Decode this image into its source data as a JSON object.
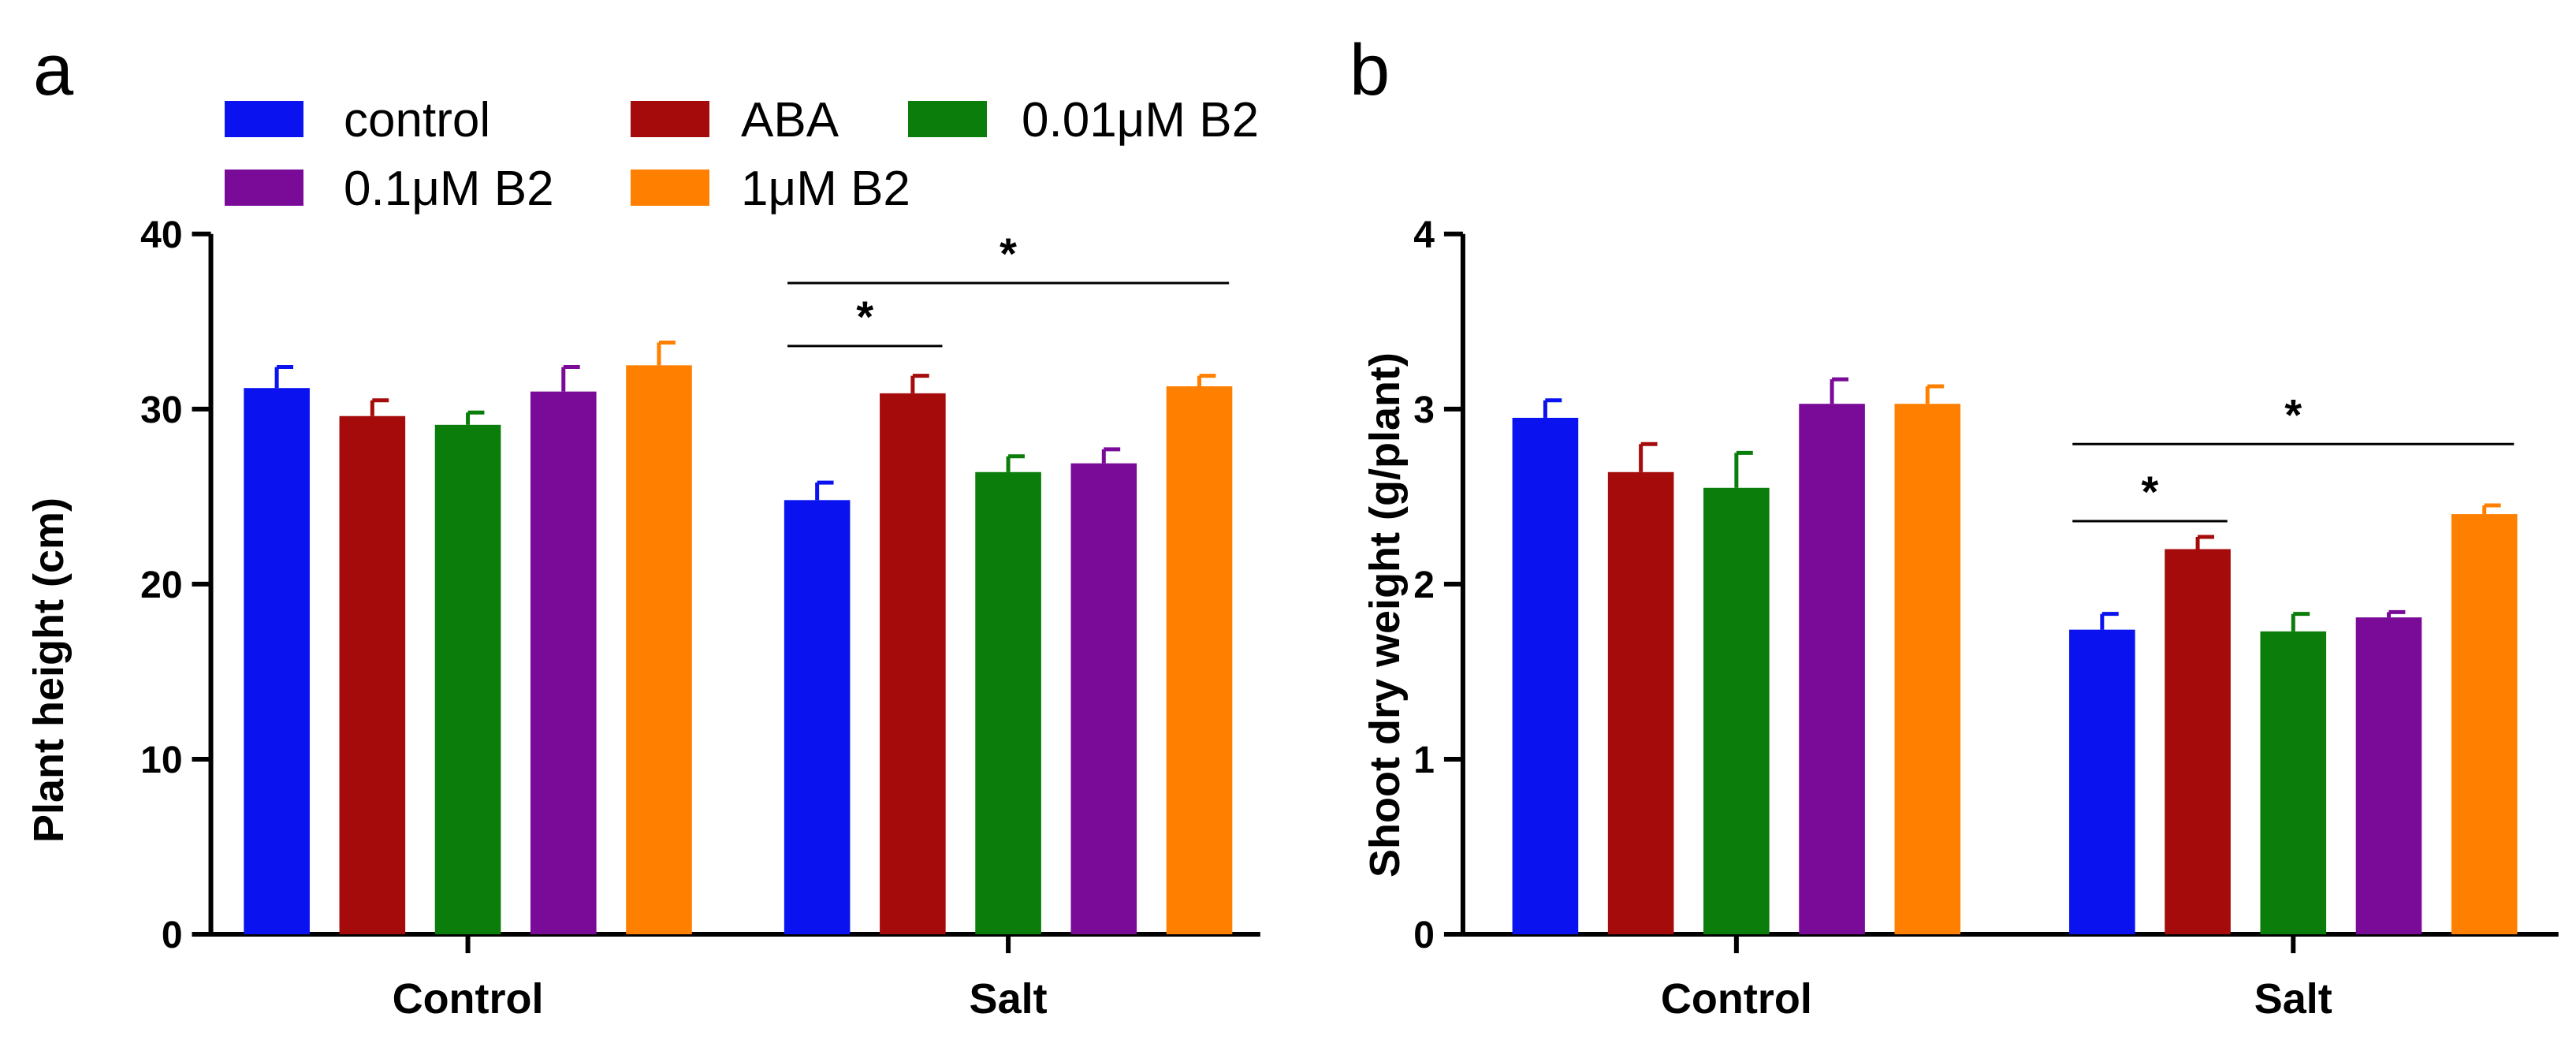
{
  "legend": [
    "control",
    "ABA",
    "0.01μM B2",
    "0.1μM B2",
    "1μM B2"
  ],
  "colors": {
    "control": "#0a12f0",
    "ABA": "#a50b0b",
    "0.01μM B2": "#0a7d0a",
    "0.1μM B2": "#7a0a98",
    "1μM B2": "#ff8000"
  },
  "chart_data": [
    {
      "panel_label": "a",
      "type": "bar",
      "categories": [
        "Control",
        "Salt"
      ],
      "series": [
        {
          "name": "control",
          "values": [
            31.2,
            24.8
          ],
          "errors": [
            1.2,
            1.0
          ]
        },
        {
          "name": "ABA",
          "values": [
            29.6,
            30.9
          ],
          "errors": [
            0.9,
            1.0
          ]
        },
        {
          "name": "0.01μM B2",
          "values": [
            29.1,
            26.4
          ],
          "errors": [
            0.7,
            0.9
          ]
        },
        {
          "name": "0.1μM B2",
          "values": [
            31.0,
            26.9
          ],
          "errors": [
            1.4,
            0.8
          ]
        },
        {
          "name": "1μM B2",
          "values": [
            32.5,
            31.3
          ],
          "errors": [
            1.3,
            0.6
          ]
        }
      ],
      "ylabel": "Plant height (cm)",
      "xlabel": "",
      "ylim": [
        0,
        40
      ],
      "yticks": [
        0,
        10,
        20,
        30,
        40
      ],
      "significance": [
        {
          "category": "Salt",
          "from": "control",
          "to": "ABA",
          "label": "*",
          "level": 33.6
        },
        {
          "category": "Salt",
          "from": "control",
          "to": "1μM B2",
          "label": "*",
          "level": 37.2
        }
      ]
    },
    {
      "panel_label": "b",
      "type": "bar",
      "categories": [
        "Control",
        "Salt"
      ],
      "series": [
        {
          "name": "control",
          "values": [
            2.95,
            1.74
          ],
          "errors": [
            0.1,
            0.09
          ]
        },
        {
          "name": "ABA",
          "values": [
            2.64,
            2.2
          ],
          "errors": [
            0.16,
            0.07
          ]
        },
        {
          "name": "0.01μM B2",
          "values": [
            2.55,
            1.73
          ],
          "errors": [
            0.2,
            0.1
          ]
        },
        {
          "name": "0.1μM B2",
          "values": [
            3.03,
            1.81
          ],
          "errors": [
            0.14,
            0.03
          ]
        },
        {
          "name": "1μM B2",
          "values": [
            3.03,
            2.4
          ],
          "errors": [
            0.1,
            0.05
          ]
        }
      ],
      "ylabel": "Shoot dry weight (g/plant)",
      "xlabel": "",
      "ylim": [
        0,
        4
      ],
      "yticks": [
        0,
        1,
        2,
        3,
        4
      ],
      "significance": [
        {
          "category": "Salt",
          "from": "control",
          "to": "ABA",
          "label": "*",
          "level": 2.36
        },
        {
          "category": "Salt",
          "from": "control",
          "to": "1μM B2",
          "label": "*",
          "level": 2.8
        }
      ]
    }
  ]
}
